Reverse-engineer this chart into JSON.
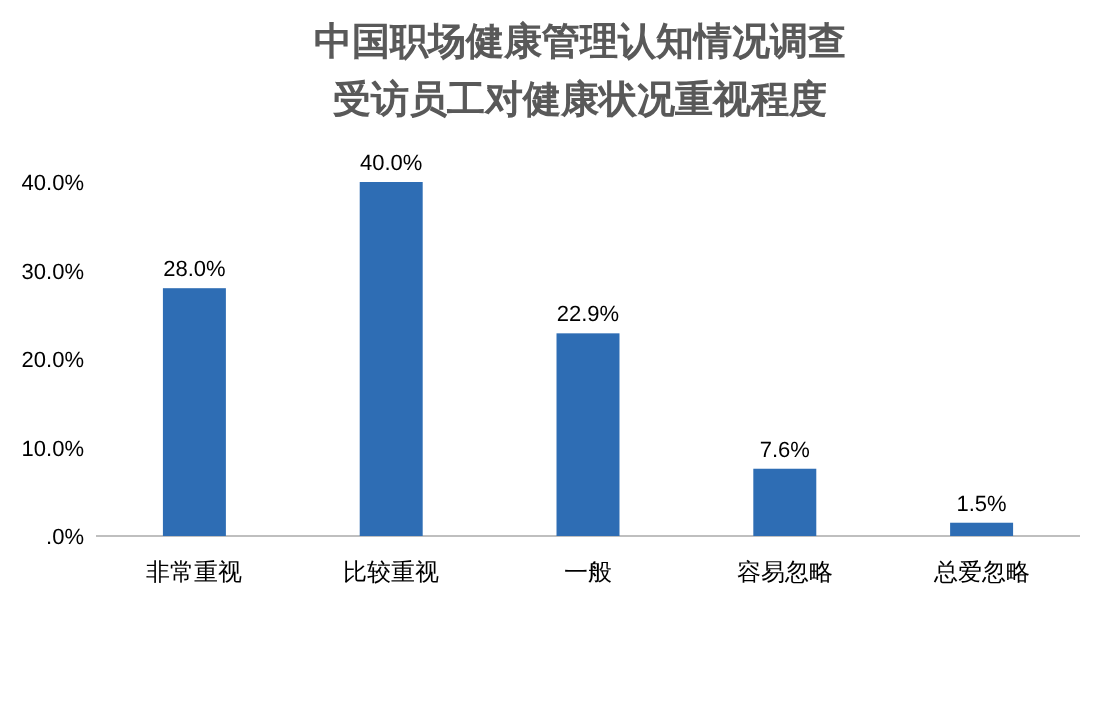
{
  "chart_data": {
    "type": "bar",
    "title": "中国职场健康管理认知情况调查",
    "subtitle": "受访员工对健康状况重视程度",
    "categories": [
      "非常重视",
      "比较重视",
      "一般",
      "容易忽略",
      "总爱忽略"
    ],
    "values": [
      28.0,
      40.0,
      22.9,
      7.6,
      1.5
    ],
    "value_labels": [
      "28.0%",
      "40.0%",
      "22.9%",
      "7.6%",
      "1.5%"
    ],
    "color": "#2e6db4",
    "ylim": [
      0,
      40
    ],
    "yticks": [
      {
        "value": 0,
        "label": ".0%"
      },
      {
        "value": 10,
        "label": "10.0%"
      },
      {
        "value": 20,
        "label": "20.0%"
      },
      {
        "value": 30,
        "label": "30.0%"
      },
      {
        "value": 40,
        "label": "40.0%"
      }
    ]
  }
}
